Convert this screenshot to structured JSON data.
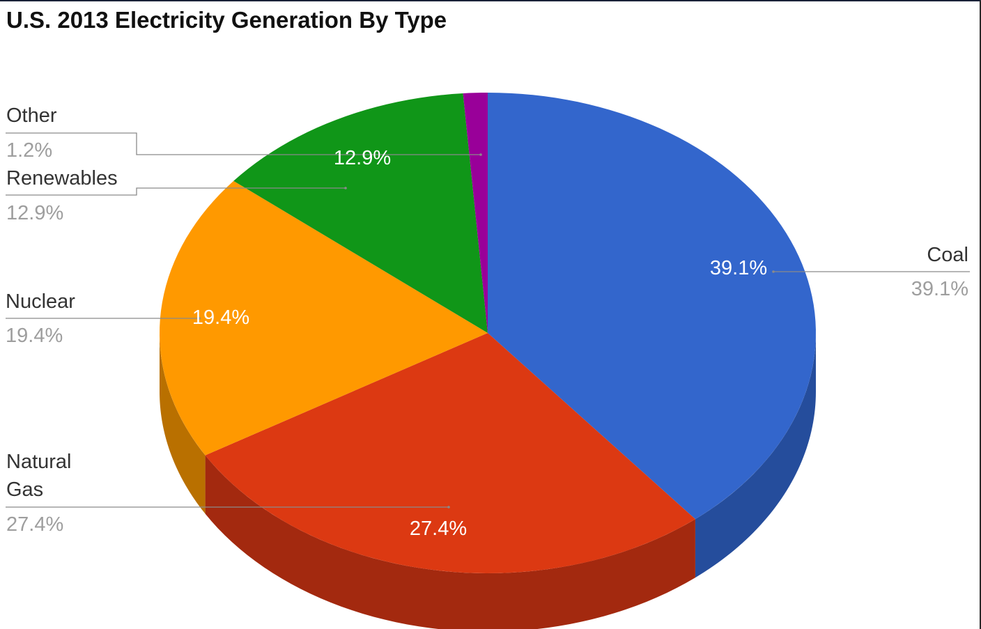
{
  "chart_data": {
    "type": "pie",
    "three_d": true,
    "title": "U.S. 2013 Electricity Generation By Type",
    "slices": [
      {
        "label": "Coal",
        "value": 39.1,
        "display": "39.1%",
        "color": "#3366cc",
        "side_color": "#254d9c"
      },
      {
        "label": "Natural Gas",
        "label_lines": [
          "Natural",
          "Gas"
        ],
        "value": 27.4,
        "display": "27.4%",
        "color": "#dc3912",
        "side_color": "#a3290f"
      },
      {
        "label": "Nuclear",
        "value": 19.4,
        "display": "19.4%",
        "color": "#ff9900",
        "side_color": "#b97000"
      },
      {
        "label": "Renewables",
        "value": 12.9,
        "display": "12.9%",
        "color": "#109618",
        "side_color": "#0b6e11"
      },
      {
        "label": "Other",
        "value": 1.2,
        "display": "1.2%",
        "color": "#990099",
        "side_color": "#6e006e"
      }
    ],
    "legend": "callout labels with leader lines"
  }
}
